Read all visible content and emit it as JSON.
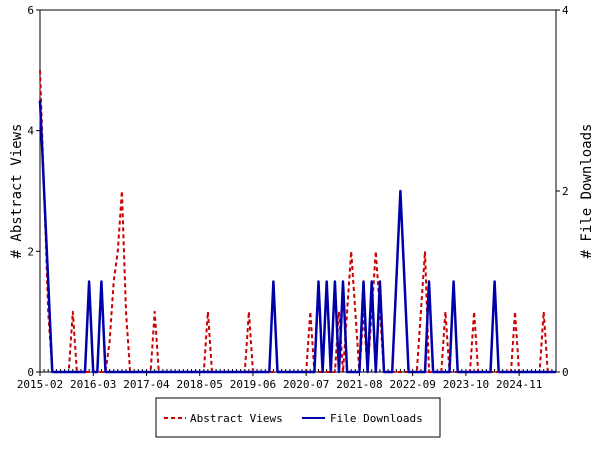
{
  "chart_data": {
    "type": "line",
    "title": "",
    "ylabel": "# Abstract Views",
    "y2label": "# File Downloads",
    "x_tick_labels": [
      "2015-02",
      "2016-03",
      "2017-04",
      "2018-05",
      "2019-06",
      "2020-07",
      "2021-08",
      "2022-09",
      "2023-10",
      "2024-11"
    ],
    "ylim": [
      0,
      6
    ],
    "y_ticks": [
      "0",
      "2",
      "4",
      "6"
    ],
    "y2lim": [
      0,
      4
    ],
    "y2_ticks": [
      "0",
      "2",
      "4"
    ],
    "grid": false,
    "legend_position": "bottom-center",
    "series": [
      {
        "name": "Abstract Views",
        "axis": "left",
        "color": "#cc0000",
        "style": "dashed",
        "points": [
          [
            0,
            5
          ],
          [
            1,
            3
          ],
          [
            2,
            1
          ],
          [
            3,
            0
          ],
          [
            7,
            0
          ],
          [
            8,
            1
          ],
          [
            9,
            0
          ],
          [
            16,
            0
          ],
          [
            17,
            0.5
          ],
          [
            18,
            1.5
          ],
          [
            19,
            2
          ],
          [
            20,
            3
          ],
          [
            21,
            1
          ],
          [
            22,
            0
          ],
          [
            27,
            0
          ],
          [
            28,
            1
          ],
          [
            29,
            0
          ],
          [
            40,
            0
          ],
          [
            41,
            1
          ],
          [
            42,
            0
          ],
          [
            50,
            0
          ],
          [
            51,
            1
          ],
          [
            52,
            0
          ],
          [
            65,
            0
          ],
          [
            66,
            1
          ],
          [
            67,
            0
          ],
          [
            72,
            0
          ],
          [
            73,
            1
          ],
          [
            74,
            0
          ],
          [
            75,
            1
          ],
          [
            76,
            2
          ],
          [
            77,
            1
          ],
          [
            78,
            0
          ],
          [
            79,
            1
          ],
          [
            80,
            0
          ],
          [
            81,
            1
          ],
          [
            82,
            2
          ],
          [
            83,
            1
          ],
          [
            84,
            0
          ],
          [
            92,
            0
          ],
          [
            93,
            1
          ],
          [
            94,
            2
          ],
          [
            95,
            0
          ],
          [
            98,
            0
          ],
          [
            99,
            1
          ],
          [
            100,
            0
          ],
          [
            105,
            0
          ],
          [
            106,
            1
          ],
          [
            107,
            0
          ],
          [
            115,
            0
          ],
          [
            116,
            1
          ],
          [
            117,
            0
          ],
          [
            122,
            0
          ],
          [
            123,
            1
          ],
          [
            124,
            0
          ]
        ]
      },
      {
        "name": "File Downloads",
        "axis": "right",
        "color": "#0000aa",
        "style": "solid",
        "points": [
          [
            0,
            3
          ],
          [
            1,
            2
          ],
          [
            2,
            1
          ],
          [
            3,
            0
          ],
          [
            11,
            0
          ],
          [
            12,
            1
          ],
          [
            13,
            0
          ],
          [
            14,
            0
          ],
          [
            15,
            1
          ],
          [
            16,
            0
          ],
          [
            56,
            0
          ],
          [
            57,
            1
          ],
          [
            58,
            0
          ],
          [
            67,
            0
          ],
          [
            68,
            1
          ],
          [
            69,
            0
          ],
          [
            70,
            1
          ],
          [
            71,
            0
          ],
          [
            72,
            1
          ],
          [
            73,
            0
          ],
          [
            74,
            1
          ],
          [
            75,
            0
          ],
          [
            78,
            0
          ],
          [
            79,
            1
          ],
          [
            80,
            0
          ],
          [
            81,
            1
          ],
          [
            82,
            0
          ],
          [
            83,
            1
          ],
          [
            84,
            0
          ],
          [
            86,
            0
          ],
          [
            87,
            1
          ],
          [
            88,
            2
          ],
          [
            89,
            1
          ],
          [
            90,
            0
          ],
          [
            94,
            0
          ],
          [
            95,
            1
          ],
          [
            96,
            0
          ],
          [
            100,
            0
          ],
          [
            101,
            1
          ],
          [
            102,
            0
          ],
          [
            110,
            0
          ],
          [
            111,
            1
          ],
          [
            112,
            0
          ]
        ]
      }
    ]
  }
}
